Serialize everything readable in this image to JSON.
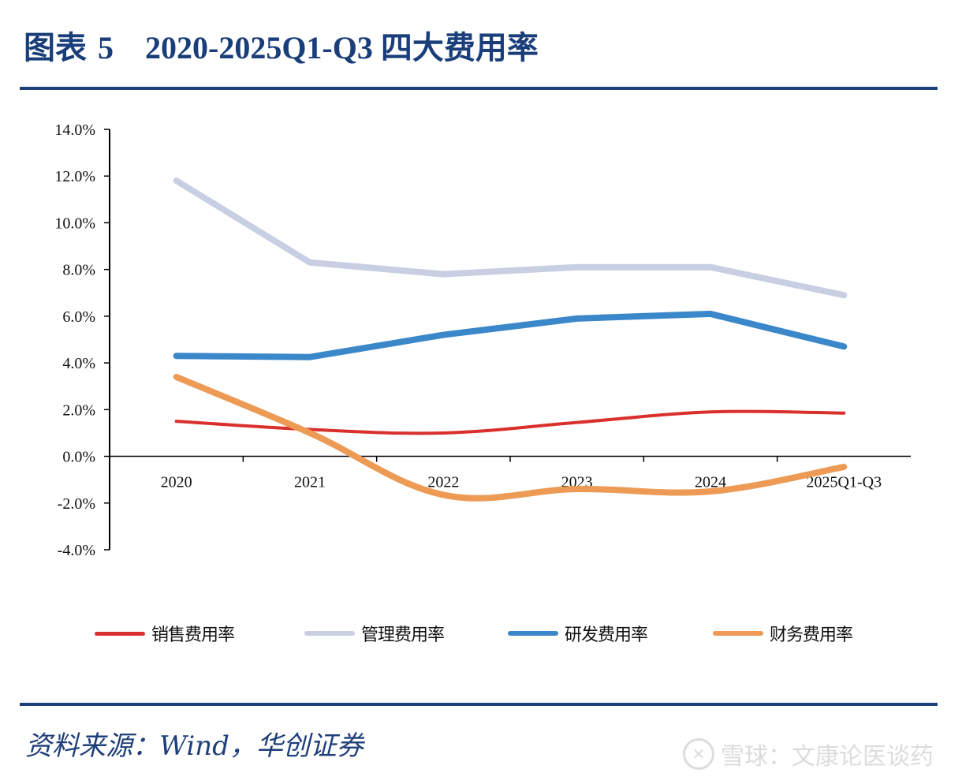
{
  "figure": {
    "label": "图表",
    "number": "5",
    "title": "2020-2025Q1-Q3 四大费用率"
  },
  "source": "资料来源：Wind，华创证券",
  "watermark": {
    "icon": "snowball-logo-icon",
    "text": "雪球：文康论医谈药"
  },
  "chart_data": {
    "type": "line",
    "title": "2020-2025Q1-Q3 四大费用率",
    "xlabel": "",
    "ylabel": "",
    "categories": [
      "2020",
      "2021",
      "2022",
      "2023",
      "2024",
      "2025Q1-Q3"
    ],
    "ylim": [
      -4.0,
      14.0
    ],
    "yticks": [
      14.0,
      12.0,
      10.0,
      8.0,
      6.0,
      4.0,
      2.0,
      0.0,
      -2.0,
      -4.0
    ],
    "ytick_labels": [
      "14.0%",
      "12.0%",
      "10.0%",
      "8.0%",
      "6.0%",
      "4.0%",
      "2.0%",
      "0.0%",
      "-2.0%",
      "-4.0%"
    ],
    "unit": "%",
    "grid": false,
    "legend_position": "bottom",
    "series": [
      {
        "name": "销售费用率",
        "color": "#d9302e",
        "smooth": true,
        "values": [
          1.5,
          1.15,
          1.0,
          1.45,
          1.9,
          1.85
        ]
      },
      {
        "name": "管理费用率",
        "color": "#c9cfe3",
        "smooth": false,
        "values": [
          11.8,
          8.3,
          7.8,
          8.1,
          8.1,
          6.9
        ]
      },
      {
        "name": "研发费用率",
        "color": "#3a87c9",
        "smooth": false,
        "values": [
          4.3,
          4.25,
          5.2,
          5.9,
          6.1,
          4.7
        ]
      },
      {
        "name": "财务费用率",
        "color": "#ed9a55",
        "smooth": true,
        "values": [
          3.4,
          1.0,
          -1.65,
          -1.4,
          -1.5,
          -0.45
        ]
      }
    ]
  }
}
